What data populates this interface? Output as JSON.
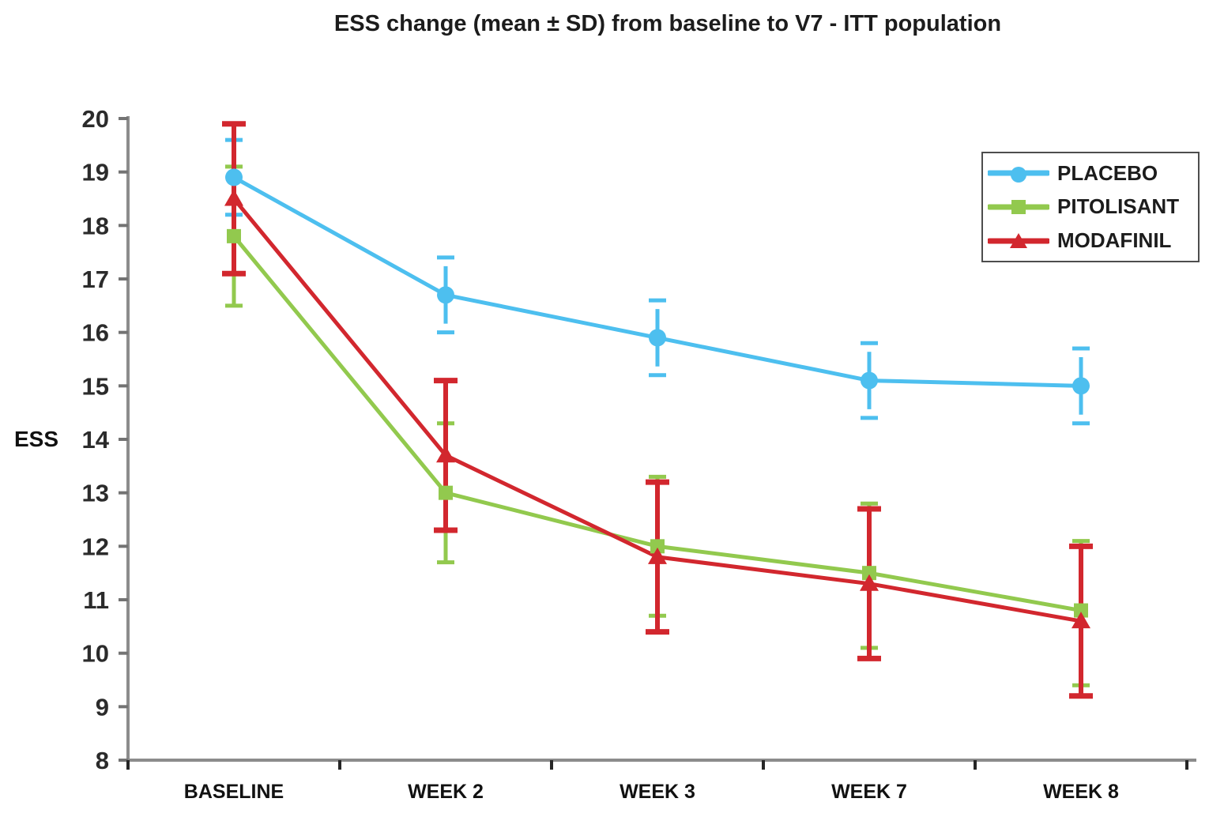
{
  "title": "ESS change (mean ± SD) from baseline to V7 - ITT population",
  "chart_data": {
    "type": "line",
    "error_bars": "mean ± SD",
    "categories": [
      "BASELINE",
      "WEEK 2",
      "WEEK 3",
      "WEEK 7",
      "WEEK 8"
    ],
    "xlabel": "",
    "ylabel": "ESS",
    "ylim": [
      8,
      20
    ],
    "y_ticks": [
      8,
      9,
      10,
      11,
      12,
      13,
      14,
      15,
      16,
      17,
      18,
      19,
      20
    ],
    "grid": false,
    "legend_position": "top-right",
    "series": [
      {
        "name": "PLACEBO",
        "color": "#4DBFEF",
        "marker": "circle",
        "means": [
          18.9,
          16.7,
          15.9,
          15.1,
          15.0
        ],
        "sd_low": [
          18.2,
          16.0,
          15.2,
          14.4,
          14.3
        ],
        "sd_high": [
          19.6,
          17.4,
          16.6,
          15.8,
          15.7
        ]
      },
      {
        "name": "PITOLISANT",
        "color": "#92C94E",
        "marker": "square",
        "means": [
          17.8,
          13.0,
          12.0,
          11.5,
          10.8
        ],
        "sd_low": [
          16.5,
          11.7,
          10.7,
          10.1,
          9.4
        ],
        "sd_high": [
          19.1,
          14.3,
          13.3,
          12.8,
          12.1
        ]
      },
      {
        "name": "MODAFINIL",
        "color": "#D2272E",
        "marker": "triangle",
        "means": [
          18.5,
          13.7,
          11.8,
          11.3,
          10.6
        ],
        "sd_low": [
          17.1,
          12.3,
          10.4,
          9.9,
          9.2
        ],
        "sd_high": [
          19.9,
          15.1,
          13.2,
          12.7,
          12.0
        ]
      }
    ],
    "colors": {
      "axis_line": "#8C8C8C",
      "y_tick": "#737373",
      "x_tick": "#262626",
      "tick_label": "#2b2b2b"
    }
  }
}
